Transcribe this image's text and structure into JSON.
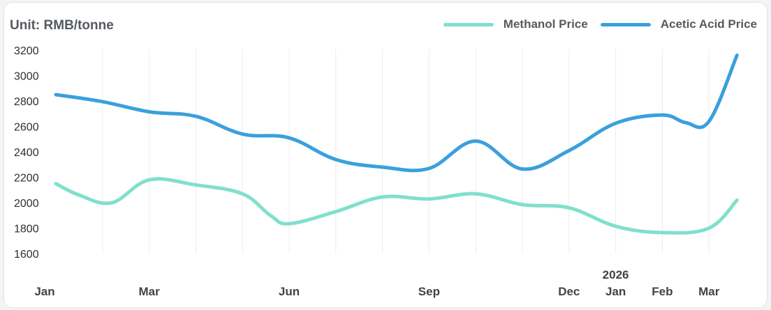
{
  "chart_data": {
    "type": "line",
    "unit_label": "Unit: RMB/tonne",
    "y_ticks": [
      "3200",
      "3000",
      "2800",
      "2600",
      "2400",
      "2200",
      "2000",
      "1800",
      "1600"
    ],
    "ylim": [
      1600,
      3200
    ],
    "x_labels": [
      {
        "month": "Jan",
        "year": "",
        "index": 0
      },
      {
        "month": "Mar",
        "year": "",
        "index": 2
      },
      {
        "month": "Jun",
        "year": "",
        "index": 5
      },
      {
        "month": "Sep",
        "year": "",
        "index": 8
      },
      {
        "month": "Dec",
        "year": "",
        "index": 11
      },
      {
        "month": "Jan",
        "year": "2026",
        "index": 12
      },
      {
        "month": "Feb",
        "year": "",
        "index": 13
      },
      {
        "month": "Mar",
        "year": "",
        "index": 14
      }
    ],
    "series": [
      {
        "name": "Methanol Price",
        "color": "#7fe0cc",
        "x": [
          0,
          0.5,
          1.2,
          2,
          3,
          4,
          4.6,
          5,
          6,
          7,
          8,
          9,
          10,
          11,
          12,
          13,
          14,
          14.6
        ],
        "values": [
          2150,
          2060,
          2000,
          2180,
          2140,
          2070,
          1900,
          1835,
          1930,
          2045,
          2030,
          2070,
          1985,
          1960,
          1815,
          1765,
          1800,
          2020
        ]
      },
      {
        "name": "Acetic Acid Price",
        "color": "#3aa0dc",
        "x": [
          0,
          1,
          2,
          3,
          4,
          5,
          6,
          7,
          8,
          9,
          10,
          11,
          12,
          13,
          13.5,
          14,
          14.6
        ],
        "values": [
          2850,
          2795,
          2715,
          2680,
          2540,
          2510,
          2340,
          2280,
          2270,
          2485,
          2265,
          2410,
          2625,
          2690,
          2630,
          2640,
          3160
        ]
      }
    ]
  }
}
